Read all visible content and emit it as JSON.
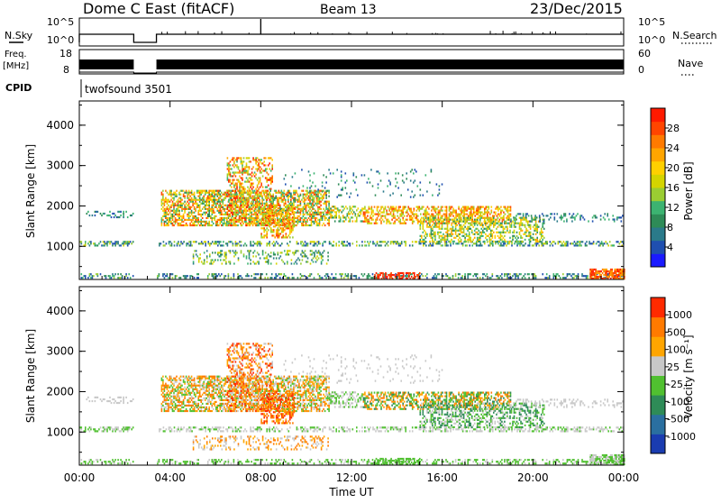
{
  "header": {
    "title": "Dome C East (fitACF)",
    "beam": "Beam 13",
    "date": "23/Dec/2015"
  },
  "top_panels": {
    "nsky_label": "N.Sky",
    "nsky_left_ticks": [
      "10^5",
      "10^0"
    ],
    "nsearch_label": "N.Search",
    "nsearch_right_ticks": [
      "10^5",
      "10^0"
    ],
    "freq_label": "Freq.",
    "freq_unit": "[MHz]",
    "freq_ticks": [
      "18",
      "8"
    ],
    "nave_label": "Nave",
    "nave_ticks": [
      "60",
      "0"
    ],
    "cpid_label": "CPID",
    "cpid_value": "twofsound 3501"
  },
  "chart_data": [
    {
      "type": "heatmap",
      "panel": "power",
      "ylabel": "Slant Range [km]",
      "ylim": [
        180,
        4600
      ],
      "yticks": [
        "1000",
        "2000",
        "3000",
        "4000"
      ],
      "xlim_hours": [
        0,
        24
      ],
      "colorbar": {
        "label": "Power [dB]",
        "range": [
          0,
          32
        ],
        "ticks": [
          "4",
          "8",
          "12",
          "16",
          "20",
          "24",
          "28"
        ],
        "colors": [
          "#1a1aff",
          "#1f4fb0",
          "#2a7a8a",
          "#2e8b57",
          "#3cb371",
          "#9acd32",
          "#d4d400",
          "#ffd000",
          "#ffa500",
          "#ff7a00",
          "#ff4500",
          "#ff1a00"
        ]
      },
      "data_gap_hours": [
        2.4,
        3.4
      ]
    },
    {
      "type": "heatmap",
      "panel": "velocity",
      "ylabel": "Slant Range [km]",
      "ylim": [
        180,
        4600
      ],
      "yticks": [
        "1000",
        "2000",
        "3000",
        "4000"
      ],
      "xlim_hours": [
        0,
        24
      ],
      "xticks": [
        "00:00",
        "04:00",
        "08:00",
        "12:00",
        "16:00",
        "20:00",
        "00:00"
      ],
      "xlabel": "Time UT",
      "colorbar": {
        "label": "Velocity [m s⁻¹]",
        "ticks": [
          "1000",
          "500",
          "100",
          "25",
          "-25",
          "-100",
          "-500",
          "-1000"
        ],
        "colors": [
          "#1a3cb0",
          "#2a6fa0",
          "#2e8b57",
          "#50c030",
          "#c8c8c8",
          "#ffa500",
          "#ff7a00",
          "#ff2a00"
        ]
      },
      "data_gap_hours": [
        2.4,
        3.4
      ]
    }
  ]
}
